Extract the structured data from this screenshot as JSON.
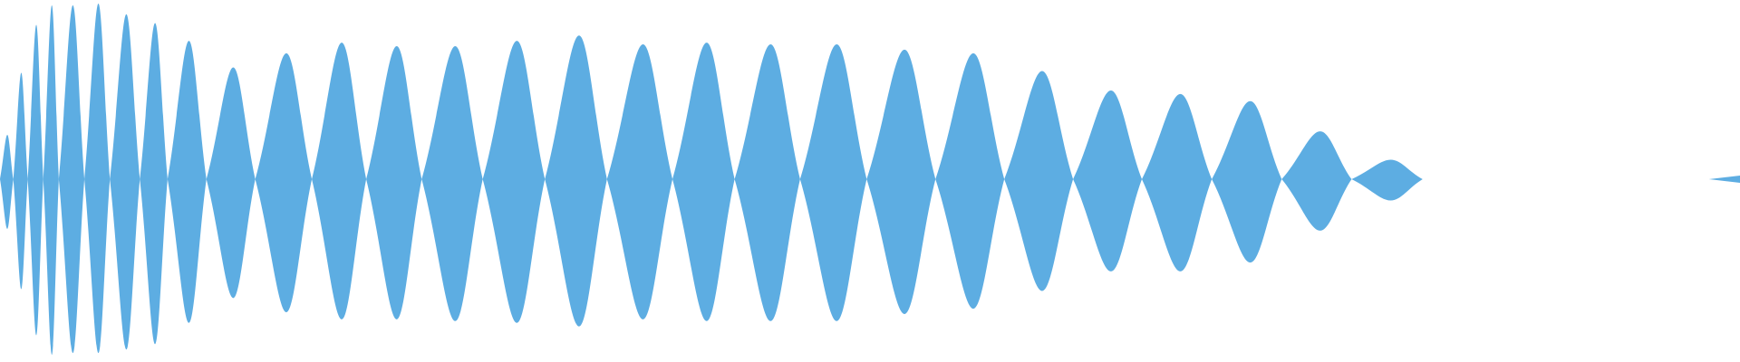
{
  "waveform": {
    "color": "#5dade2",
    "background": "#ffffff",
    "node_count": 27,
    "lobes": [
      {
        "top": 0.25,
        "bottom": 0.28
      },
      {
        "top": 0.6,
        "bottom": 0.62
      },
      {
        "top": 0.87,
        "bottom": 0.88
      },
      {
        "top": 0.98,
        "bottom": 0.99
      },
      {
        "top": 0.98,
        "bottom": 0.98
      },
      {
        "top": 0.99,
        "bottom": 0.98
      },
      {
        "top": 0.93,
        "bottom": 0.96
      },
      {
        "top": 0.88,
        "bottom": 0.93
      },
      {
        "top": 0.78,
        "bottom": 0.81
      },
      {
        "top": 0.63,
        "bottom": 0.67
      },
      {
        "top": 0.71,
        "bottom": 0.75
      },
      {
        "top": 0.77,
        "bottom": 0.79
      },
      {
        "top": 0.75,
        "bottom": 0.79
      },
      {
        "top": 0.75,
        "bottom": 0.8
      },
      {
        "top": 0.78,
        "bottom": 0.81
      },
      {
        "top": 0.81,
        "bottom": 0.83
      },
      {
        "top": 0.76,
        "bottom": 0.79
      },
      {
        "top": 0.77,
        "bottom": 0.8
      },
      {
        "top": 0.76,
        "bottom": 0.8
      },
      {
        "top": 0.76,
        "bottom": 0.8
      },
      {
        "top": 0.73,
        "bottom": 0.76
      },
      {
        "top": 0.71,
        "bottom": 0.73
      },
      {
        "top": 0.61,
        "bottom": 0.63
      },
      {
        "top": 0.5,
        "bottom": 0.52
      },
      {
        "top": 0.48,
        "bottom": 0.52
      },
      {
        "top": 0.44,
        "bottom": 0.47
      },
      {
        "top": 0.27,
        "bottom": 0.29
      },
      {
        "top": 0.11,
        "bottom": 0.12
      }
    ]
  }
}
